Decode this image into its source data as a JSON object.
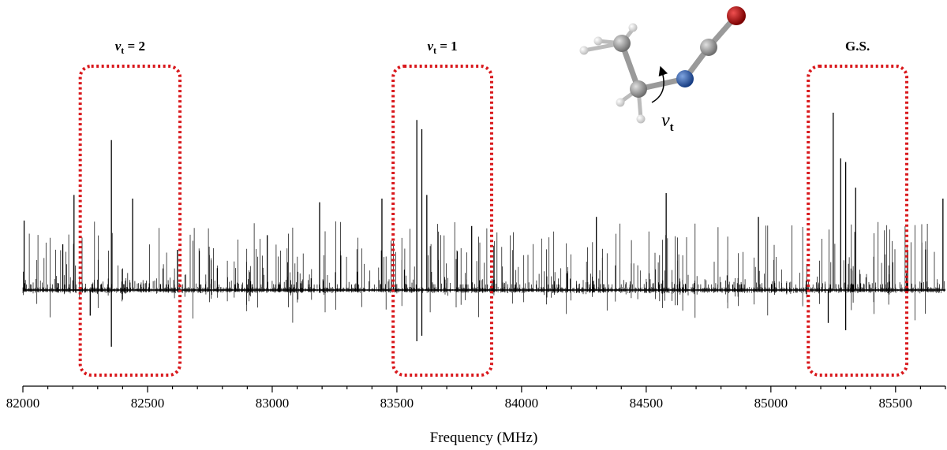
{
  "chart_data": {
    "type": "line",
    "title": "",
    "xlabel": "Frequency (MHz)",
    "ylabel": "",
    "xlim": [
      82000,
      85700
    ],
    "ylim": [
      -1.0,
      1.0
    ],
    "x_ticks": [
      82000,
      82500,
      83000,
      83500,
      84000,
      84500,
      85000,
      85500
    ],
    "x_tick_labels": [
      "82000",
      "82500",
      "83000",
      "83500",
      "84000",
      "84500",
      "85000",
      "85500"
    ],
    "grid": false,
    "series": [
      {
        "style": "stick spectrum",
        "color": "#000000",
        "positive_peaks": [
          {
            "x": 82005,
            "y": 0.38
          },
          {
            "x": 82160,
            "y": 0.25
          },
          {
            "x": 82205,
            "y": 0.52
          },
          {
            "x": 82355,
            "y": 0.82
          },
          {
            "x": 82440,
            "y": 0.5
          },
          {
            "x": 82620,
            "y": 0.22
          },
          {
            "x": 82980,
            "y": 0.3
          },
          {
            "x": 83190,
            "y": 0.48
          },
          {
            "x": 83440,
            "y": 0.5
          },
          {
            "x": 83580,
            "y": 0.93
          },
          {
            "x": 83600,
            "y": 0.88
          },
          {
            "x": 83620,
            "y": 0.52
          },
          {
            "x": 83800,
            "y": 0.35
          },
          {
            "x": 84300,
            "y": 0.4
          },
          {
            "x": 84580,
            "y": 0.53
          },
          {
            "x": 84950,
            "y": 0.4
          },
          {
            "x": 85250,
            "y": 0.97
          },
          {
            "x": 85280,
            "y": 0.72
          },
          {
            "x": 85300,
            "y": 0.7
          },
          {
            "x": 85340,
            "y": 0.56
          },
          {
            "x": 85690,
            "y": 0.5
          }
        ],
        "negative_peaks": [
          {
            "x": 82355,
            "y": -0.31
          },
          {
            "x": 82270,
            "y": -0.14
          },
          {
            "x": 83580,
            "y": -0.28
          },
          {
            "x": 83600,
            "y": -0.25
          },
          {
            "x": 85230,
            "y": -0.18
          },
          {
            "x": 85300,
            "y": -0.22
          }
        ]
      }
    ],
    "annotations": [
      {
        "label_main": "v",
        "label_sub": "t",
        "label_rest": " = 2",
        "x_range": [
          82230,
          82630
        ]
      },
      {
        "label_main": "v",
        "label_sub": "t",
        "label_rest": " = 1",
        "x_range": [
          83485,
          83880
        ]
      },
      {
        "label_main": "G.S.",
        "label_sub": "",
        "label_rest": "",
        "x_range": [
          85150,
          85545
        ]
      }
    ],
    "box_color": "#d9181c",
    "inset": {
      "label_main": "ν",
      "label_sub": "t",
      "atom_colors": {
        "carbon": "#8f8f8f",
        "hydrogen": "#e6e6e6",
        "nitrogen": "#1f4e9c",
        "oxygen": "#a80000"
      }
    }
  }
}
